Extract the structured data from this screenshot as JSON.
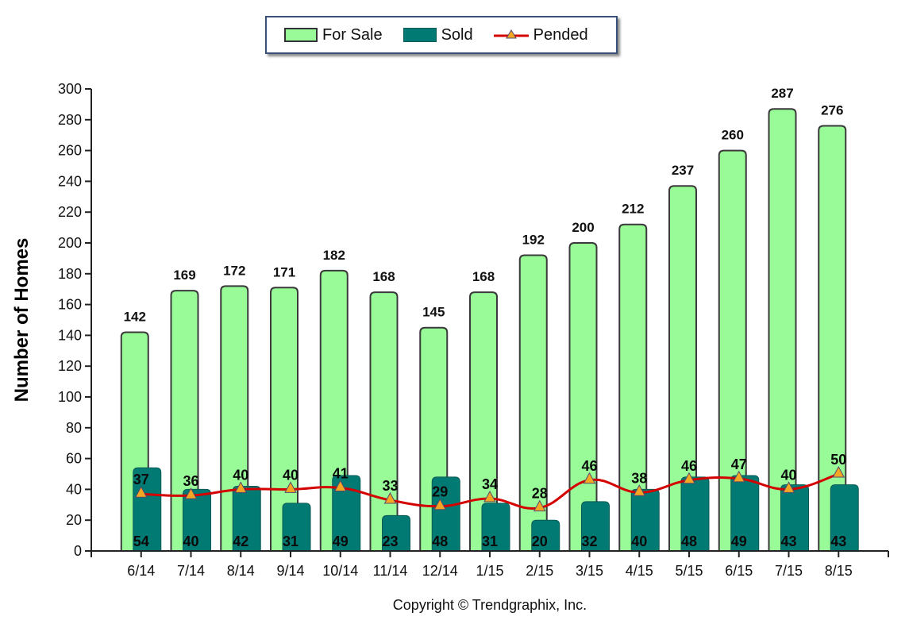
{
  "chart_data": {
    "type": "bar",
    "categories": [
      "6/14",
      "7/14",
      "8/14",
      "9/14",
      "10/14",
      "11/14",
      "12/14",
      "1/15",
      "2/15",
      "3/15",
      "4/15",
      "5/15",
      "6/15",
      "7/15",
      "8/15"
    ],
    "series": [
      {
        "name": "For Sale",
        "type": "bar",
        "color": "#98fb98",
        "values": [
          142,
          169,
          172,
          171,
          182,
          168,
          145,
          168,
          192,
          200,
          212,
          237,
          260,
          287,
          276
        ]
      },
      {
        "name": "Sold",
        "type": "bar",
        "color": "#007a72",
        "values": [
          54,
          40,
          42,
          31,
          49,
          23,
          48,
          31,
          20,
          32,
          40,
          48,
          49,
          43,
          43
        ]
      },
      {
        "name": "Pended",
        "type": "line",
        "color": "#d40000",
        "marker_color": "#f5a623",
        "values": [
          37,
          36,
          40,
          40,
          41,
          33,
          29,
          34,
          28,
          46,
          38,
          46,
          47,
          40,
          50
        ]
      }
    ],
    "title": "",
    "xlabel": "",
    "ylabel": "Number of Homes",
    "ylim": [
      0,
      300
    ],
    "yticks": [
      0,
      20,
      40,
      60,
      80,
      100,
      120,
      140,
      160,
      180,
      200,
      220,
      240,
      260,
      280,
      300
    ],
    "grid": false,
    "legend_position": "top-center",
    "footer": "Copyright © Trendgraphix, Inc."
  },
  "legend": {
    "items": [
      {
        "label": "For Sale"
      },
      {
        "label": "Sold"
      },
      {
        "label": "Pended"
      }
    ]
  }
}
